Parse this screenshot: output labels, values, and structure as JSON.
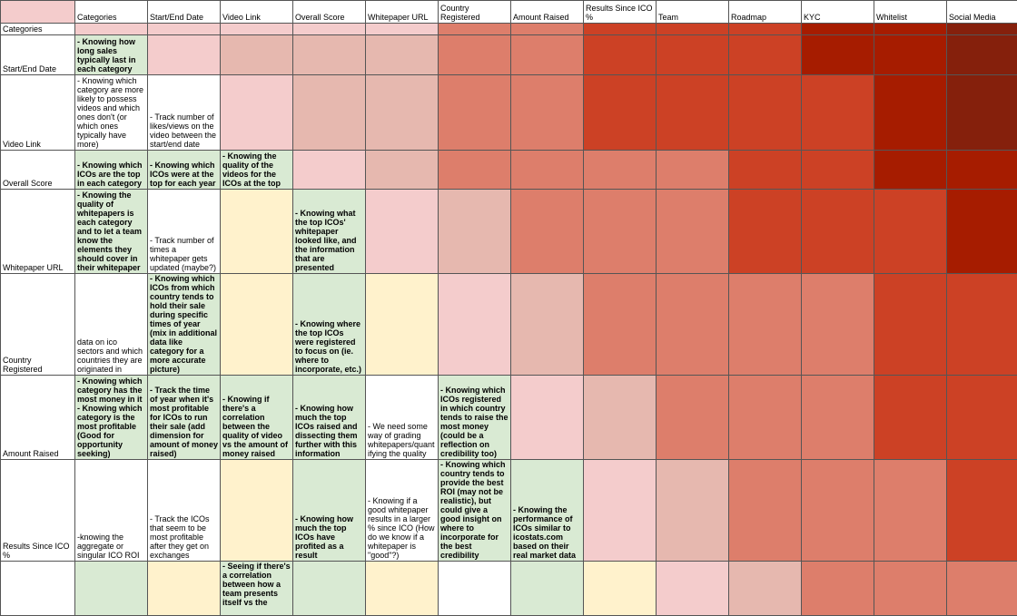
{
  "columns": [
    "Categories",
    "Start/End Date",
    "Video Link",
    "Overall Score",
    "Whitepaper URL",
    "Country Registered",
    "Amount Raised",
    "Results Since ICO %",
    "Team",
    "Roadmap",
    "KYC",
    "Whitelist",
    "Social Media"
  ],
  "rows": [
    {
      "label": "Categories",
      "cells": [
        "",
        "",
        "",
        "",
        "",
        "",
        "",
        "",
        "",
        "",
        "",
        "",
        ""
      ]
    },
    {
      "label": "Start/End Date",
      "cells": [
        "- Knowing how long sales typically last in each category",
        "",
        "",
        "",
        "",
        "",
        "",
        "",
        "",
        "",
        "",
        "",
        ""
      ]
    },
    {
      "label": "Video Link",
      "cells": [
        "- Knowing which category are more likely to possess videos and which ones don't (or which ones typically have more)",
        "- Track number of likes/views on the video between the start/end date",
        "",
        "",
        "",
        "",
        "",
        "",
        "",
        "",
        "",
        "",
        ""
      ]
    },
    {
      "label": "Overall Score",
      "cells": [
        "- Knowing which ICOs are the top in each category",
        "- Knowing which ICOs were at the top for each year",
        "- Knowing the quality of the videos for the ICOs at the top",
        "",
        "",
        "",
        "",
        "",
        "",
        "",
        "",
        "",
        ""
      ]
    },
    {
      "label": "Whitepaper URL",
      "cells": [
        "- Knowing the quality of whitepapers is each category and to let a team know the elements they should cover in their whitepaper",
        "- Track number of times a whitepaper gets updated (maybe?)",
        "",
        "- Knowing what the top ICOs' whitepaper looked like, and the information that are presented",
        "",
        "",
        "",
        "",
        "",
        "",
        "",
        "",
        ""
      ]
    },
    {
      "label": "Country Registered",
      "cells": [
        "data on ico sectors and which countries they are originated in",
        "- Knowing which ICOs from which country tends to hold their sale during specific times of year (mix in additional data like category for a more accurate picture)",
        "",
        "- Knowing where the top ICOs were registered to focus on (ie. where to incorporate, etc.)",
        "",
        "",
        "",
        "",
        "",
        "",
        "",
        "",
        ""
      ]
    },
    {
      "label": "Amount Raised",
      "cells": [
        "- Knowing which category has the most money in it\n- Knowing which category is the most profitable (Good for opportunity seeking)",
        "- Track the time of year when it's most profitable for ICOs to run their sale (add dimension for amount of money raised)",
        "- Knowing if there's a correlation between the quality of video vs the amount of money raised",
        "- Knowing how much the top ICOs raised and dissecting them further with this information",
        "- We need some way of grading whitepapers/quantifying the quality",
        "- Knowing which ICOs registered in which country tends to raise the most money (could be a reflection on credibility too)",
        "",
        "",
        "",
        "",
        "",
        "",
        ""
      ]
    },
    {
      "label": "Results Since ICO %",
      "cells": [
        "-knowing the aggregate or singular ICO ROI",
        "- Track the ICOs that seem to be most profitable after they get on exchanges",
        "",
        "- Knowing how much the top ICOs have profited as a result",
        "- Knowing if a good whitepaper results in a larger % since ICO (How do we know if a whitepaper is \"good\"?)",
        "- Knowing which country tends to provide the best ROI (may not be realistic), but could give a good insight on where to incorporate for the best credibility",
        "- Knowing the performance of ICOs similar to icostats.com based on their real market data",
        "",
        "",
        "",
        "",
        "",
        ""
      ]
    },
    {
      "label": "",
      "cells": [
        "",
        "",
        "- Seeing if there's a correlation between how a team presents itself vs the",
        "",
        "",
        "",
        "",
        "",
        "",
        "",
        "",
        "",
        ""
      ]
    }
  ]
}
